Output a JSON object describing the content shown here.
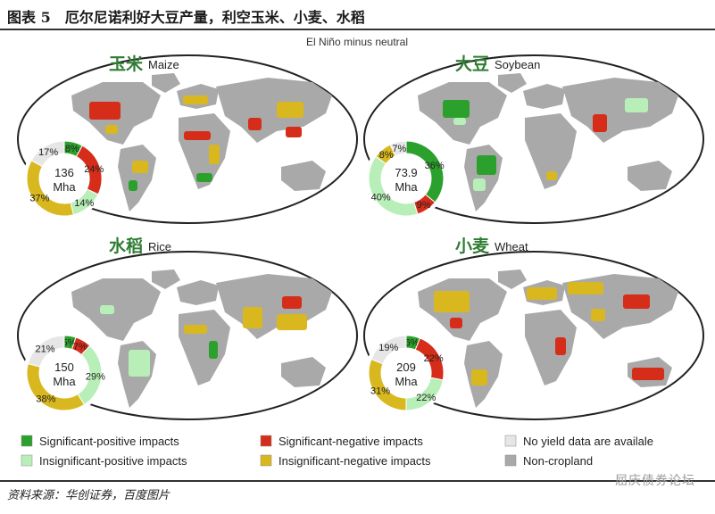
{
  "figure": {
    "title": "图表 5　厄尔尼诺利好大豆产量，利空玉米、小麦、水稻",
    "source": "资料来源：华创证券，百度图片",
    "watermark": "屈庆债券论坛"
  },
  "chart_data": {
    "type": "pie",
    "heading": "El Niño minus neutral",
    "categories": [
      "Significant-positive impacts",
      "Insignificant-positive impacts",
      "Significant-negative impacts",
      "Insignificant-negative impacts",
      "No yield data are availale",
      "Non-cropland"
    ],
    "colors": {
      "sig_pos": "#2ca02c",
      "insig_pos": "#b8efb8",
      "sig_neg": "#d62d1a",
      "insig_neg": "#d9b81f",
      "no_data": "#e6e6e6",
      "non_crop": "#a9a9a9"
    },
    "panels": [
      {
        "crop_cn": "玉米",
        "crop_en": "Maize",
        "center_value": "136",
        "center_unit": "Mha",
        "slices": [
          {
            "key": "sig_pos",
            "value": 8,
            "label": "8%"
          },
          {
            "key": "sig_neg",
            "value": 24,
            "label": "24%"
          },
          {
            "key": "insig_pos",
            "value": 14,
            "label": "14%"
          },
          {
            "key": "insig_neg",
            "value": 37,
            "label": "37%"
          },
          {
            "key": "no_data",
            "value": 17,
            "label": "17%"
          }
        ]
      },
      {
        "crop_cn": "大豆",
        "crop_en": "Soybean",
        "center_value": "73.9",
        "center_unit": "Mha",
        "slices": [
          {
            "key": "sig_pos",
            "value": 36,
            "label": "36%"
          },
          {
            "key": "sig_neg",
            "value": 9,
            "label": "9%"
          },
          {
            "key": "insig_pos",
            "value": 40,
            "label": "40%"
          },
          {
            "key": "insig_neg",
            "value": 8,
            "label": "8%"
          },
          {
            "key": "no_data",
            "value": 7,
            "label": "7%"
          }
        ]
      },
      {
        "crop_cn": "水稻",
        "crop_en": "Rice",
        "center_value": "150",
        "center_unit": "Mha",
        "slices": [
          {
            "key": "sig_pos",
            "value": 5,
            "label": "5%"
          },
          {
            "key": "sig_neg",
            "value": 7,
            "label": "7%"
          },
          {
            "key": "insig_pos",
            "value": 29,
            "label": "29%"
          },
          {
            "key": "insig_neg",
            "value": 38,
            "label": "38%"
          },
          {
            "key": "no_data",
            "value": 21,
            "label": "21%"
          }
        ]
      },
      {
        "crop_cn": "小麦",
        "crop_en": "Wheat",
        "center_value": "209",
        "center_unit": "Mha",
        "slices": [
          {
            "key": "sig_pos",
            "value": 6,
            "label": "6%"
          },
          {
            "key": "sig_neg",
            "value": 22,
            "label": "22%"
          },
          {
            "key": "insig_pos",
            "value": 22,
            "label": "22%"
          },
          {
            "key": "insig_neg",
            "value": 31,
            "label": "31%"
          },
          {
            "key": "no_data",
            "value": 19,
            "label": "19%"
          }
        ]
      }
    ]
  }
}
